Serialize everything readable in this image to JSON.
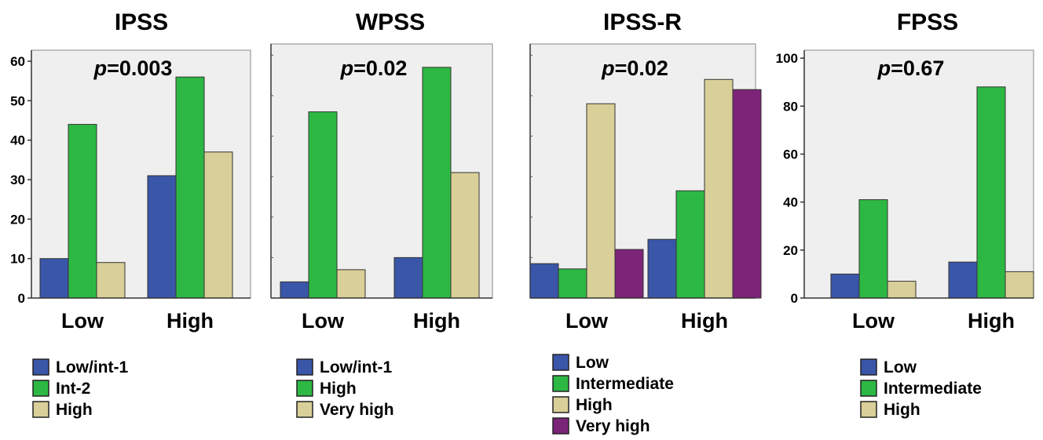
{
  "chart_data": [
    {
      "type": "bar",
      "title": "IPSS",
      "annotation_italic": "p",
      "annotation_rest": "=0.003",
      "categories": [
        "Low",
        "High"
      ],
      "ylim": [
        0,
        62
      ],
      "yticks": [
        0,
        10,
        20,
        30,
        40,
        50,
        60
      ],
      "grid": false,
      "legend_position": "bottom",
      "series": [
        {
          "name": "Low/int-1",
          "color": "#3a56a8",
          "values": [
            10,
            31
          ]
        },
        {
          "name": "Int-2",
          "color": "#2db843",
          "values": [
            44,
            56
          ]
        },
        {
          "name": "High",
          "color": "#d9cf98",
          "values": [
            9,
            37
          ]
        }
      ]
    },
    {
      "type": "bar",
      "title": "WPSS",
      "annotation_italic": "p",
      "annotation_rest": "=0.02",
      "categories": [
        "Low",
        "High"
      ],
      "ylim": [
        0,
        62
      ],
      "yticks": [],
      "grid": false,
      "legend_position": "bottom",
      "series": [
        {
          "name": "Low/int-1",
          "color": "#3a56a8",
          "values": [
            4,
            10
          ]
        },
        {
          "name": "High",
          "color": "#2db843",
          "values": [
            46,
            57
          ]
        },
        {
          "name": "Very high",
          "color": "#d9cf98",
          "values": [
            7,
            31
          ]
        }
      ]
    },
    {
      "type": "bar",
      "title": "IPSS-R",
      "annotation_italic": "p",
      "annotation_rest": "=0.02",
      "categories": [
        "Low",
        "High"
      ],
      "ylim": [
        0,
        62
      ],
      "yticks": [],
      "grid": false,
      "legend_position": "bottom",
      "series": [
        {
          "name": "Low",
          "color": "#3a56a8",
          "values": [
            8.5,
            14.5
          ]
        },
        {
          "name": "Intermediate",
          "color": "#2db843",
          "values": [
            7.2,
            26.5
          ]
        },
        {
          "name": "High",
          "color": "#d9cf98",
          "values": [
            48,
            54
          ]
        },
        {
          "name": "Very high",
          "color": "#7c2478",
          "values": [
            12,
            51.5
          ]
        }
      ]
    },
    {
      "type": "bar",
      "title": "FPSS",
      "annotation_italic": "p",
      "annotation_rest": "=0.67",
      "categories": [
        "Low",
        "High"
      ],
      "ylim": [
        0,
        102
      ],
      "yticks": [
        0,
        20,
        40,
        60,
        80,
        100
      ],
      "grid": false,
      "legend_position": "bottom",
      "series": [
        {
          "name": "Low",
          "color": "#3a56a8",
          "values": [
            10,
            15
          ]
        },
        {
          "name": "Intermediate",
          "color": "#2db843",
          "values": [
            41,
            88
          ]
        },
        {
          "name": "High",
          "color": "#d9cf98",
          "values": [
            7,
            11
          ]
        }
      ]
    }
  ]
}
